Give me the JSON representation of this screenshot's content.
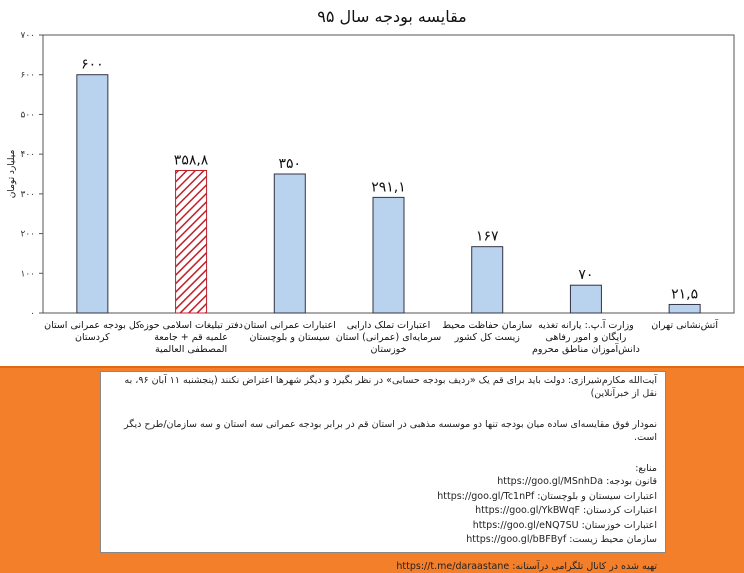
{
  "chart_data": {
    "type": "bar",
    "title": "مقایسه بودجه سال ۹۵",
    "ylabel": "میلیارد تومان",
    "ylim": [
      0,
      700
    ],
    "yticks": [
      "۰",
      "۱۰۰",
      "۲۰۰",
      "۳۰۰",
      "۴۰۰",
      "۵۰۰",
      "۶۰۰",
      "۷۰۰"
    ],
    "ytick_values": [
      0,
      100,
      200,
      300,
      400,
      500,
      600,
      700
    ],
    "grid": false,
    "categories": [
      [
        "کل بودجه عمرانی استان",
        "کردستان"
      ],
      [
        "دفتر تبلیغات اسلامی حوزه",
        "علمیه قم + جامعة",
        "المصطفی العالمیة"
      ],
      [
        "اعتبارات عمرانی استان",
        "سیستان و بلوچستان"
      ],
      [
        "اعتبارات تملک دارایی",
        "سرمایه‌ای (عمرانی) استان",
        "خوزستان"
      ],
      [
        "سازمان حفاظت محیط",
        "زیست کل کشور"
      ],
      [
        "وزارت آ.پ.: یارانه تغذیه",
        "رایگان و امور رفاهی",
        "دانش‌آموزان مناطق محروم"
      ],
      [
        "آتش‌نشانی تهران"
      ]
    ],
    "values": [
      600,
      358.8,
      350,
      291.1,
      167,
      70,
      21.5
    ],
    "value_labels": [
      "۶۰۰",
      "۳۵۸,۸",
      "۳۵۰",
      "۲۹۱,۱",
      "۱۶۷",
      "۷۰",
      "۲۱,۵"
    ],
    "colors": {
      "bar_fill": "#b9d3ee",
      "bar_stroke": "#334",
      "highlight_hatch": "#c0202a",
      "highlight_index": 1
    }
  },
  "notes": {
    "quote": "آیت‌الله مکارم‌شیرازی: دولت باید برای قم یک «ردیف بودجه حسابی» در نظر بگیرد و دیگر شهرها اعتراض نکنند (پنجشنبه ۱۱ آبان ۹۶، به نقل از خبرآنلاین)",
    "comment": "نمودار فوق مقایسه‌ای ساده میان بودجه تنها دو موسسه مذهبی در استان قم در برابر بودجه عمرانی سه استان و سه سازمان/طرح دیگر است.",
    "sources_heading": "منابع:",
    "sources": [
      {
        "label": "قانون بودجه:",
        "url": "https://goo.gl/MSnhDa"
      },
      {
        "label": "اعتبارات سیستان و بلوچستان:",
        "url": "https://goo.gl/Tc1nPf"
      },
      {
        "label": "اعتبارات کردستان:",
        "url": "https://goo.gl/YkBWqF"
      },
      {
        "label": "اعتبارات خوزستان:",
        "url": "https://goo.gl/eNQ7SU"
      },
      {
        "label": "سازمان محیط زیست:",
        "url": "https://goo.gl/bBFByf"
      }
    ],
    "telegram_label": "تهیه شده در کانال تلگرامی درآستانه:",
    "telegram_url": "https://t.me/daraastane"
  }
}
